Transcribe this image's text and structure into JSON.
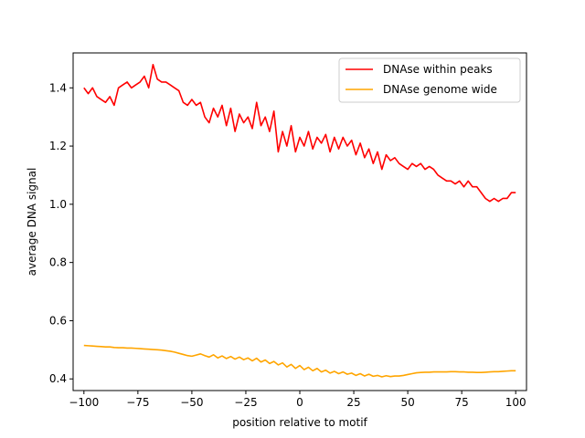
{
  "chart_data": {
    "type": "line",
    "title": "",
    "xlabel": "position relative to motif",
    "ylabel": "average DNA signal",
    "xlim": [
      -105,
      105
    ],
    "ylim": [
      0.36,
      1.52
    ],
    "xticks": [
      -100,
      -75,
      -50,
      -25,
      0,
      25,
      50,
      75,
      100
    ],
    "yticks": [
      0.4,
      0.6,
      0.8,
      1.0,
      1.2,
      1.4
    ],
    "xtick_labels": [
      "−100",
      "−75",
      "−50",
      "−25",
      "0",
      "25",
      "50",
      "75",
      "100"
    ],
    "ytick_labels": [
      "0.4",
      "0.6",
      "0.8",
      "1.0",
      "1.2",
      "1.4"
    ],
    "grid": false,
    "legend_position": "top-right",
    "series": [
      {
        "name": "DNAse within peaks",
        "color": "#ff0000",
        "x": [
          -100,
          -98,
          -96,
          -94,
          -92,
          -90,
          -88,
          -86,
          -84,
          -82,
          -80,
          -78,
          -76,
          -74,
          -72,
          -70,
          -68,
          -66,
          -64,
          -62,
          -60,
          -58,
          -56,
          -54,
          -52,
          -50,
          -48,
          -46,
          -44,
          -42,
          -40,
          -38,
          -36,
          -34,
          -32,
          -30,
          -28,
          -26,
          -24,
          -22,
          -20,
          -18,
          -16,
          -14,
          -12,
          -10,
          -8,
          -6,
          -4,
          -2,
          0,
          2,
          4,
          6,
          8,
          10,
          12,
          14,
          16,
          18,
          20,
          22,
          24,
          26,
          28,
          30,
          32,
          34,
          36,
          38,
          40,
          42,
          44,
          46,
          48,
          50,
          52,
          54,
          56,
          58,
          60,
          62,
          64,
          66,
          68,
          70,
          72,
          74,
          76,
          78,
          80,
          82,
          84,
          86,
          88,
          90,
          92,
          94,
          96,
          98,
          100
        ],
        "y": [
          1.4,
          1.38,
          1.4,
          1.37,
          1.36,
          1.35,
          1.37,
          1.34,
          1.4,
          1.41,
          1.42,
          1.4,
          1.41,
          1.42,
          1.44,
          1.4,
          1.48,
          1.43,
          1.42,
          1.42,
          1.41,
          1.4,
          1.39,
          1.35,
          1.34,
          1.36,
          1.34,
          1.35,
          1.3,
          1.28,
          1.33,
          1.3,
          1.34,
          1.27,
          1.33,
          1.25,
          1.31,
          1.28,
          1.3,
          1.26,
          1.35,
          1.27,
          1.3,
          1.25,
          1.32,
          1.18,
          1.25,
          1.2,
          1.27,
          1.18,
          1.23,
          1.2,
          1.25,
          1.19,
          1.23,
          1.21,
          1.24,
          1.18,
          1.23,
          1.19,
          1.23,
          1.2,
          1.22,
          1.17,
          1.21,
          1.16,
          1.19,
          1.14,
          1.18,
          1.12,
          1.17,
          1.15,
          1.16,
          1.14,
          1.13,
          1.12,
          1.14,
          1.13,
          1.14,
          1.12,
          1.13,
          1.12,
          1.1,
          1.09,
          1.08,
          1.08,
          1.07,
          1.08,
          1.06,
          1.08,
          1.06,
          1.06,
          1.04,
          1.02,
          1.01,
          1.02,
          1.01,
          1.02,
          1.02,
          1.04,
          1.04
        ]
      },
      {
        "name": "DNAse genome wide",
        "color": "#ffa500",
        "x": [
          -100,
          -98,
          -96,
          -94,
          -92,
          -90,
          -88,
          -86,
          -84,
          -82,
          -80,
          -78,
          -76,
          -74,
          -72,
          -70,
          -68,
          -66,
          -64,
          -62,
          -60,
          -58,
          -56,
          -54,
          -52,
          -50,
          -48,
          -46,
          -44,
          -42,
          -40,
          -38,
          -36,
          -34,
          -32,
          -30,
          -28,
          -26,
          -24,
          -22,
          -20,
          -18,
          -16,
          -14,
          -12,
          -10,
          -8,
          -6,
          -4,
          -2,
          0,
          2,
          4,
          6,
          8,
          10,
          12,
          14,
          16,
          18,
          20,
          22,
          24,
          26,
          28,
          30,
          32,
          34,
          36,
          38,
          40,
          42,
          44,
          46,
          48,
          50,
          52,
          54,
          56,
          58,
          60,
          62,
          64,
          66,
          68,
          70,
          72,
          74,
          76,
          78,
          80,
          82,
          84,
          86,
          88,
          90,
          92,
          94,
          96,
          98,
          100
        ],
        "y": [
          0.515,
          0.514,
          0.513,
          0.512,
          0.511,
          0.51,
          0.51,
          0.508,
          0.507,
          0.507,
          0.506,
          0.506,
          0.505,
          0.504,
          0.503,
          0.502,
          0.501,
          0.5,
          0.499,
          0.497,
          0.495,
          0.492,
          0.488,
          0.484,
          0.48,
          0.478,
          0.482,
          0.486,
          0.48,
          0.475,
          0.483,
          0.472,
          0.479,
          0.47,
          0.477,
          0.468,
          0.475,
          0.466,
          0.472,
          0.462,
          0.471,
          0.458,
          0.465,
          0.453,
          0.46,
          0.448,
          0.455,
          0.441,
          0.45,
          0.436,
          0.446,
          0.432,
          0.44,
          0.428,
          0.436,
          0.424,
          0.43,
          0.42,
          0.426,
          0.418,
          0.424,
          0.416,
          0.42,
          0.412,
          0.418,
          0.41,
          0.416,
          0.409,
          0.412,
          0.407,
          0.411,
          0.408,
          0.41,
          0.41,
          0.412,
          0.415,
          0.418,
          0.421,
          0.422,
          0.423,
          0.423,
          0.424,
          0.424,
          0.424,
          0.424,
          0.425,
          0.425,
          0.424,
          0.424,
          0.423,
          0.423,
          0.422,
          0.422,
          0.423,
          0.424,
          0.425,
          0.425,
          0.426,
          0.427,
          0.428,
          0.428
        ]
      }
    ]
  }
}
